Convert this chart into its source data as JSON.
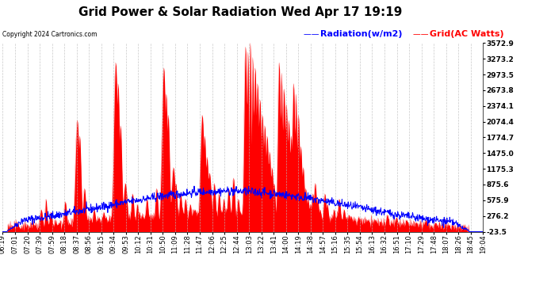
{
  "title": "Grid Power & Solar Radiation Wed Apr 17 19:19",
  "copyright": "Copyright 2024 Cartronics.com",
  "legend_radiation": "Radiation(w/m2)",
  "legend_grid": "Grid(AC Watts)",
  "yticks": [
    3572.9,
    3273.2,
    2973.5,
    2673.8,
    2374.1,
    2074.4,
    1774.7,
    1475.0,
    1175.3,
    875.6,
    575.9,
    276.2,
    -23.5
  ],
  "ylim": [
    -23.5,
    3572.9
  ],
  "xtick_labels": [
    "06:19",
    "07:01",
    "07:20",
    "07:39",
    "07:59",
    "08:18",
    "08:37",
    "08:56",
    "09:15",
    "09:34",
    "09:53",
    "10:12",
    "10:31",
    "10:50",
    "11:09",
    "11:28",
    "11:47",
    "12:06",
    "12:25",
    "12:44",
    "13:03",
    "13:22",
    "13:41",
    "14:00",
    "14:19",
    "14:38",
    "14:57",
    "15:16",
    "15:35",
    "15:54",
    "16:13",
    "16:32",
    "16:51",
    "17:10",
    "17:29",
    "17:48",
    "18:07",
    "18:26",
    "18:45",
    "19:04"
  ],
  "background_color": "#ffffff",
  "grid_color": "#bbbbbb",
  "radiation_color": "#0000ff",
  "grid_ac_color": "#ff0000",
  "title_fontsize": 11,
  "tick_fontsize": 6,
  "legend_fontsize": 8
}
